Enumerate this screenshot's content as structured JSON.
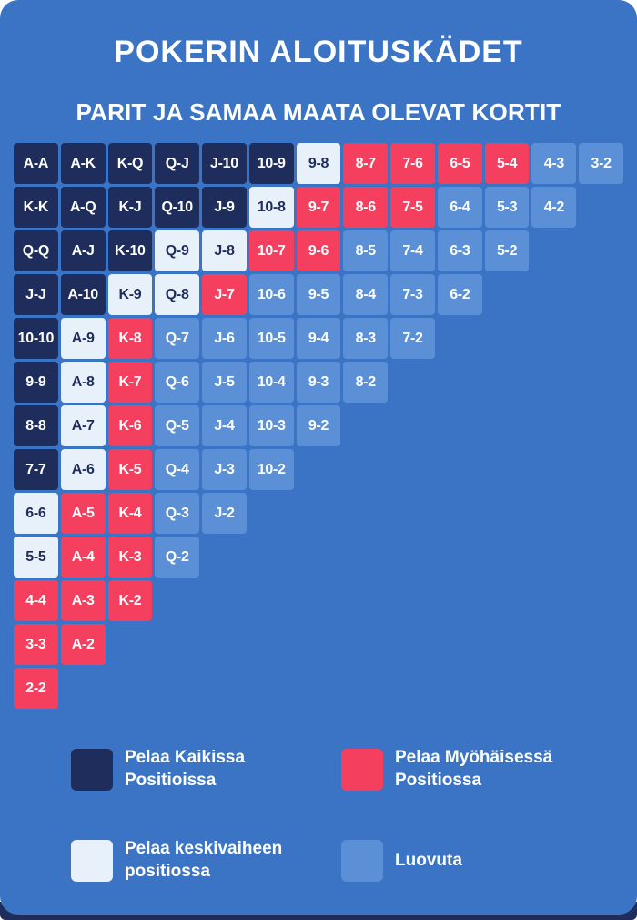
{
  "chart_data": {
    "type": "heatmap",
    "title": "POKERIN ALOITUSKÄDET",
    "subtitle": "PARIT JA SAMAA MAATA OLEVAT KORTIT",
    "legend_position": "bottom",
    "rows": [
      [
        {
          "hand": "A-A",
          "action": "all"
        },
        {
          "hand": "A-K",
          "action": "all"
        },
        {
          "hand": "K-Q",
          "action": "all"
        },
        {
          "hand": "Q-J",
          "action": "all"
        },
        {
          "hand": "J-10",
          "action": "all"
        },
        {
          "hand": "10-9",
          "action": "all"
        },
        {
          "hand": "9-8",
          "action": "middle"
        },
        {
          "hand": "8-7",
          "action": "late"
        },
        {
          "hand": "7-6",
          "action": "late"
        },
        {
          "hand": "6-5",
          "action": "late"
        },
        {
          "hand": "5-4",
          "action": "late"
        },
        {
          "hand": "4-3",
          "action": "fold"
        },
        {
          "hand": "3-2",
          "action": "fold"
        }
      ],
      [
        {
          "hand": "K-K",
          "action": "all"
        },
        {
          "hand": "A-Q",
          "action": "all"
        },
        {
          "hand": "K-J",
          "action": "all"
        },
        {
          "hand": "Q-10",
          "action": "all"
        },
        {
          "hand": "J-9",
          "action": "all"
        },
        {
          "hand": "10-8",
          "action": "middle"
        },
        {
          "hand": "9-7",
          "action": "late"
        },
        {
          "hand": "8-6",
          "action": "late"
        },
        {
          "hand": "7-5",
          "action": "late"
        },
        {
          "hand": "6-4",
          "action": "fold"
        },
        {
          "hand": "5-3",
          "action": "fold"
        },
        {
          "hand": "4-2",
          "action": "fold"
        }
      ],
      [
        {
          "hand": "Q-Q",
          "action": "all"
        },
        {
          "hand": "A-J",
          "action": "all"
        },
        {
          "hand": "K-10",
          "action": "all"
        },
        {
          "hand": "Q-9",
          "action": "middle"
        },
        {
          "hand": "J-8",
          "action": "middle"
        },
        {
          "hand": "10-7",
          "action": "late"
        },
        {
          "hand": "9-6",
          "action": "late"
        },
        {
          "hand": "8-5",
          "action": "fold"
        },
        {
          "hand": "7-4",
          "action": "fold"
        },
        {
          "hand": "6-3",
          "action": "fold"
        },
        {
          "hand": "5-2",
          "action": "fold"
        }
      ],
      [
        {
          "hand": "J-J",
          "action": "all"
        },
        {
          "hand": "A-10",
          "action": "all"
        },
        {
          "hand": "K-9",
          "action": "middle"
        },
        {
          "hand": "Q-8",
          "action": "middle"
        },
        {
          "hand": "J-7",
          "action": "late"
        },
        {
          "hand": "10-6",
          "action": "fold"
        },
        {
          "hand": "9-5",
          "action": "fold"
        },
        {
          "hand": "8-4",
          "action": "fold"
        },
        {
          "hand": "7-3",
          "action": "fold"
        },
        {
          "hand": "6-2",
          "action": "fold"
        }
      ],
      [
        {
          "hand": "10-10",
          "action": "all"
        },
        {
          "hand": "A-9",
          "action": "middle"
        },
        {
          "hand": "K-8",
          "action": "late"
        },
        {
          "hand": "Q-7",
          "action": "fold"
        },
        {
          "hand": "J-6",
          "action": "fold"
        },
        {
          "hand": "10-5",
          "action": "fold"
        },
        {
          "hand": "9-4",
          "action": "fold"
        },
        {
          "hand": "8-3",
          "action": "fold"
        },
        {
          "hand": "7-2",
          "action": "fold"
        }
      ],
      [
        {
          "hand": "9-9",
          "action": "all"
        },
        {
          "hand": "A-8",
          "action": "middle"
        },
        {
          "hand": "K-7",
          "action": "late"
        },
        {
          "hand": "Q-6",
          "action": "fold"
        },
        {
          "hand": "J-5",
          "action": "fold"
        },
        {
          "hand": "10-4",
          "action": "fold"
        },
        {
          "hand": "9-3",
          "action": "fold"
        },
        {
          "hand": "8-2",
          "action": "fold"
        }
      ],
      [
        {
          "hand": "8-8",
          "action": "all"
        },
        {
          "hand": "A-7",
          "action": "middle"
        },
        {
          "hand": "K-6",
          "action": "late"
        },
        {
          "hand": "Q-5",
          "action": "fold"
        },
        {
          "hand": "J-4",
          "action": "fold"
        },
        {
          "hand": "10-3",
          "action": "fold"
        },
        {
          "hand": "9-2",
          "action": "fold"
        }
      ],
      [
        {
          "hand": "7-7",
          "action": "all"
        },
        {
          "hand": "A-6",
          "action": "middle"
        },
        {
          "hand": "K-5",
          "action": "late"
        },
        {
          "hand": "Q-4",
          "action": "fold"
        },
        {
          "hand": "J-3",
          "action": "fold"
        },
        {
          "hand": "10-2",
          "action": "fold"
        }
      ],
      [
        {
          "hand": "6-6",
          "action": "middle"
        },
        {
          "hand": "A-5",
          "action": "late"
        },
        {
          "hand": "K-4",
          "action": "late"
        },
        {
          "hand": "Q-3",
          "action": "fold"
        },
        {
          "hand": "J-2",
          "action": "fold"
        }
      ],
      [
        {
          "hand": "5-5",
          "action": "middle"
        },
        {
          "hand": "A-4",
          "action": "late"
        },
        {
          "hand": "K-3",
          "action": "late"
        },
        {
          "hand": "Q-2",
          "action": "fold"
        }
      ],
      [
        {
          "hand": "4-4",
          "action": "late"
        },
        {
          "hand": "A-3",
          "action": "late"
        },
        {
          "hand": "K-2",
          "action": "late"
        }
      ],
      [
        {
          "hand": "3-3",
          "action": "late"
        },
        {
          "hand": "A-2",
          "action": "late"
        }
      ],
      [
        {
          "hand": "2-2",
          "action": "late"
        }
      ]
    ]
  },
  "legend": [
    {
      "category": "all",
      "label": "Pelaa Kaikissa\nPositioissa"
    },
    {
      "category": "late",
      "label": "Pelaa Myöhäisessä\nPositiossa"
    },
    {
      "category": "middle",
      "label": "Pelaa keskivaiheen\npositiossa"
    },
    {
      "category": "fold",
      "label": "Luovuta"
    }
  ],
  "colors": {
    "background": "#3b74c4",
    "all": "#1e2d5c",
    "late": "#f43f5e",
    "middle": "#e8f1f9",
    "fold": "#5b90d6",
    "text_light": "#ffffff",
    "text_dark": "#1e2d5c",
    "footer_bar": "#1e2d5c"
  }
}
